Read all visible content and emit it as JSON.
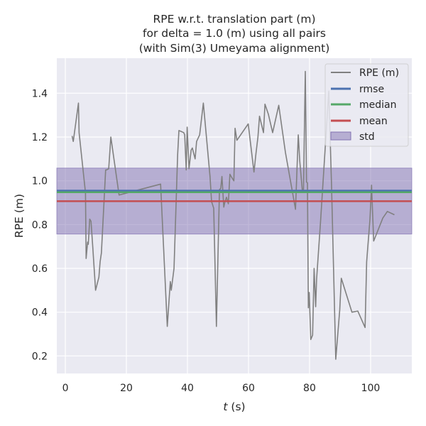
{
  "chart_data": {
    "type": "line",
    "title_lines": [
      "RPE w.r.t. translation part (m)",
      "for delta = 1.0 (m) using all pairs",
      "(with Sim(3) Umeyama alignment)"
    ],
    "xlabel": "t (s)",
    "xlabel_var": "t",
    "xlabel_unit": " (s)",
    "ylabel": "RPE (m)",
    "xlim": [
      -2.8,
      113.5
    ],
    "ylim": [
      0.12,
      1.56
    ],
    "x_ticks": [
      0,
      20,
      40,
      60,
      80,
      100
    ],
    "y_ticks": [
      0.2,
      0.4,
      0.6,
      0.8,
      1.0,
      1.2,
      1.4
    ],
    "y_tick_labels": [
      "0.2",
      "0.4",
      "0.6",
      "0.8",
      "1.0",
      "1.2",
      "1.4"
    ],
    "grid": true,
    "legend_position": "top-right",
    "legend": [
      "RPE (m)",
      "rmse",
      "median",
      "mean",
      "std"
    ],
    "colors": {
      "background": "#eaeaf2",
      "grid": "#ffffff",
      "series": "#808080",
      "rmse": "#4c72b0",
      "median": "#55a868",
      "mean": "#c44e52",
      "std": "#8172b2"
    },
    "stats": {
      "rmse": 0.955,
      "median": 0.948,
      "mean": 0.907,
      "std_low": 0.757,
      "std_high": 1.058
    },
    "series": [
      {
        "name": "RPE (m)",
        "x": [
          2.2,
          2.6,
          4.3,
          4.5,
          6.6,
          6.8,
          7.3,
          7.5,
          8.0,
          8.4,
          9.0,
          9.9,
          11.0,
          11.4,
          11.8,
          13.2,
          13.5,
          14.2,
          14.9,
          17.6,
          31.2,
          33.4,
          34.4,
          34.7,
          35.6,
          36.8,
          37.2,
          38.8,
          39.1,
          39.6,
          39.9,
          40.5,
          41.2,
          41.6,
          42.5,
          43.0,
          44.0,
          45.2,
          47.4,
          47.9,
          48.6,
          49.5,
          50.5,
          50.9,
          51.3,
          51.9,
          52.3,
          52.8,
          53.4,
          53.9,
          54.3,
          55.2,
          55.6,
          56.2,
          59.9,
          61.8,
          62.5,
          63.1,
          63.6,
          64.9,
          65.4,
          66.5,
          67.9,
          69.9,
          72.1,
          75.4,
          76.3,
          76.8,
          77.6,
          78.0,
          78.6,
          79.0,
          79.3,
          79.6,
          79.9,
          80.4,
          81.0,
          81.5,
          82.0,
          82.3,
          83.6,
          86.3,
          87.2,
          88.6,
          89.9,
          90.4,
          93.9,
          95.8,
          98.2,
          98.7,
          99.8,
          100.3,
          101.0,
          104.0,
          105.5,
          107.8
        ],
        "y": [
          1.205,
          1.18,
          1.355,
          1.22,
          0.945,
          0.645,
          0.72,
          0.71,
          0.825,
          0.815,
          0.695,
          0.5,
          0.56,
          0.63,
          0.67,
          1.05,
          1.05,
          1.055,
          1.2,
          0.935,
          0.985,
          0.335,
          0.54,
          0.5,
          0.6,
          1.12,
          1.23,
          1.22,
          1.21,
          1.05,
          1.245,
          1.055,
          1.14,
          1.15,
          1.1,
          1.18,
          1.21,
          1.355,
          1.02,
          0.905,
          0.875,
          0.335,
          0.96,
          0.965,
          1.02,
          0.88,
          0.905,
          0.925,
          0.895,
          1.03,
          1.02,
          1.0,
          1.24,
          1.185,
          1.26,
          1.04,
          1.13,
          1.2,
          1.295,
          1.22,
          1.35,
          1.305,
          1.22,
          1.345,
          1.13,
          0.87,
          1.21,
          1.09,
          0.96,
          0.955,
          1.5,
          0.995,
          0.99,
          0.42,
          0.49,
          0.275,
          0.295,
          0.6,
          0.425,
          0.55,
          0.815,
          1.41,
          0.985,
          0.185,
          0.41,
          0.555,
          0.4,
          0.405,
          0.33,
          0.63,
          0.825,
          0.98,
          0.725,
          0.83,
          0.86,
          0.845
        ]
      }
    ]
  }
}
